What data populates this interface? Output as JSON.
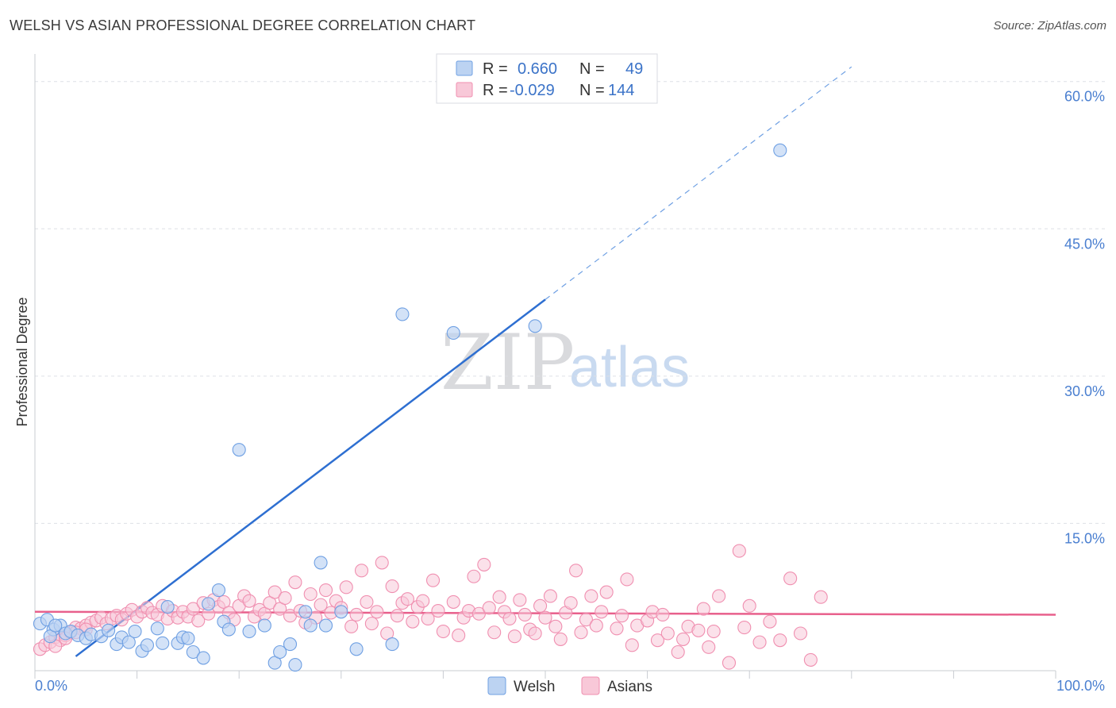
{
  "title": "WELSH VS ASIAN PROFESSIONAL DEGREE CORRELATION CHART",
  "source": "Source: ZipAtlas.com",
  "watermark": {
    "zip": "ZIP",
    "atlas": "atlas"
  },
  "colors": {
    "welsh": "#6fa0e3",
    "welsh_fill": "#bcd3f2",
    "welsh_line": "#2e6fd1",
    "asians": "#f08fb0",
    "asians_fill": "#f8c8d8",
    "asians_line": "#e8608c",
    "grid": "#dde0e6",
    "tick": "#4a7fd0"
  },
  "legend": {
    "r_label": "R =",
    "n_label": "N =",
    "rows": [
      {
        "series": "Welsh",
        "r": "0.660",
        "n": "49"
      },
      {
        "series": "Asians",
        "r": "-0.029",
        "n": "144"
      }
    ]
  },
  "chart_data": {
    "type": "scatter",
    "title": "WELSH VS ASIAN PROFESSIONAL DEGREE CORRELATION CHART",
    "xlabel": "",
    "ylabel": "Professional Degree",
    "xlim": [
      0,
      100
    ],
    "ylim": [
      0,
      62
    ],
    "x_tick_labels": [
      "0.0%",
      "100.0%"
    ],
    "y_ticks": [
      15,
      30,
      45,
      60
    ],
    "y_tick_labels": [
      "15.0%",
      "30.0%",
      "45.0%",
      "60.0%"
    ],
    "series": [
      {
        "name": "Welsh",
        "points": [
          [
            0.5,
            4.8
          ],
          [
            1.2,
            5.2
          ],
          [
            1.8,
            4.2
          ],
          [
            2.5,
            4.6
          ],
          [
            3.0,
            3.8
          ],
          [
            3.5,
            4.0
          ],
          [
            4.2,
            3.6
          ],
          [
            5.0,
            3.3
          ],
          [
            5.5,
            3.7
          ],
          [
            6.5,
            3.5
          ],
          [
            7.2,
            4.1
          ],
          [
            8.0,
            2.7
          ],
          [
            8.5,
            3.4
          ],
          [
            9.2,
            2.9
          ],
          [
            9.8,
            4.0
          ],
          [
            10.5,
            2.0
          ],
          [
            11.0,
            2.6
          ],
          [
            12.0,
            4.3
          ],
          [
            12.5,
            2.8
          ],
          [
            13.0,
            6.5
          ],
          [
            14.0,
            2.8
          ],
          [
            14.5,
            3.4
          ],
          [
            15.0,
            3.3
          ],
          [
            15.5,
            1.9
          ],
          [
            16.5,
            1.3
          ],
          [
            17.0,
            6.8
          ],
          [
            18.0,
            8.2
          ],
          [
            18.5,
            5.0
          ],
          [
            19.0,
            4.2
          ],
          [
            20.0,
            22.5
          ],
          [
            21.0,
            4.0
          ],
          [
            22.5,
            4.6
          ],
          [
            23.5,
            0.8
          ],
          [
            24.0,
            1.9
          ],
          [
            25.0,
            2.7
          ],
          [
            25.5,
            0.6
          ],
          [
            26.5,
            6.0
          ],
          [
            27.0,
            4.6
          ],
          [
            28.0,
            11.0
          ],
          [
            28.5,
            4.6
          ],
          [
            30.0,
            6.0
          ],
          [
            31.5,
            2.2
          ],
          [
            35.0,
            2.7
          ],
          [
            36.0,
            36.3
          ],
          [
            41.0,
            34.4
          ],
          [
            49.0,
            35.1
          ],
          [
            73.0,
            53.0
          ],
          [
            1.5,
            3.5
          ],
          [
            2.0,
            4.6
          ]
        ]
      },
      {
        "name": "Asians",
        "points": [
          [
            0.5,
            2.2
          ],
          [
            1.0,
            2.6
          ],
          [
            1.5,
            2.9
          ],
          [
            2.0,
            3.4
          ],
          [
            2.5,
            3.1
          ],
          [
            3.0,
            3.6
          ],
          [
            3.5,
            3.9
          ],
          [
            4.0,
            4.4
          ],
          [
            4.5,
            4.3
          ],
          [
            5.0,
            4.6
          ],
          [
            5.5,
            4.9
          ],
          [
            6.0,
            5.1
          ],
          [
            6.5,
            5.4
          ],
          [
            7.0,
            4.8
          ],
          [
            7.5,
            5.3
          ],
          [
            8.0,
            5.6
          ],
          [
            8.5,
            5.2
          ],
          [
            9.0,
            5.8
          ],
          [
            9.5,
            6.2
          ],
          [
            10.0,
            5.5
          ],
          [
            10.5,
            6.0
          ],
          [
            11.0,
            6.4
          ],
          [
            11.5,
            5.9
          ],
          [
            12.0,
            5.7
          ],
          [
            12.5,
            6.6
          ],
          [
            13.0,
            5.3
          ],
          [
            13.5,
            6.1
          ],
          [
            14.0,
            5.4
          ],
          [
            14.5,
            6.0
          ],
          [
            15.0,
            5.5
          ],
          [
            15.5,
            6.3
          ],
          [
            16.0,
            5.1
          ],
          [
            16.5,
            6.9
          ],
          [
            17.0,
            5.8
          ],
          [
            17.5,
            7.2
          ],
          [
            18.0,
            6.5
          ],
          [
            18.5,
            7.0
          ],
          [
            19.0,
            5.9
          ],
          [
            19.5,
            5.2
          ],
          [
            20.0,
            6.6
          ],
          [
            20.5,
            7.6
          ],
          [
            21.0,
            7.1
          ],
          [
            21.5,
            5.5
          ],
          [
            22.0,
            6.2
          ],
          [
            22.5,
            5.8
          ],
          [
            23.0,
            6.9
          ],
          [
            23.5,
            8.0
          ],
          [
            24.0,
            6.3
          ],
          [
            24.5,
            7.4
          ],
          [
            25.0,
            5.6
          ],
          [
            25.5,
            9.0
          ],
          [
            26.0,
            6.1
          ],
          [
            26.5,
            4.9
          ],
          [
            27.0,
            7.8
          ],
          [
            27.5,
            5.4
          ],
          [
            28.0,
            6.7
          ],
          [
            28.5,
            8.2
          ],
          [
            29.0,
            5.9
          ],
          [
            29.5,
            7.1
          ],
          [
            30.0,
            6.4
          ],
          [
            30.5,
            8.5
          ],
          [
            31.0,
            4.5
          ],
          [
            31.5,
            5.7
          ],
          [
            32.0,
            10.2
          ],
          [
            32.5,
            7.0
          ],
          [
            33.0,
            4.8
          ],
          [
            33.5,
            6.0
          ],
          [
            34.0,
            11.0
          ],
          [
            34.5,
            3.8
          ],
          [
            35.0,
            8.6
          ],
          [
            35.5,
            5.6
          ],
          [
            36.0,
            6.9
          ],
          [
            36.5,
            7.3
          ],
          [
            37.0,
            5.0
          ],
          [
            37.5,
            6.5
          ],
          [
            38.0,
            7.1
          ],
          [
            38.5,
            5.3
          ],
          [
            39.0,
            9.2
          ],
          [
            39.5,
            6.1
          ],
          [
            40.0,
            4.0
          ],
          [
            41.0,
            7.0
          ],
          [
            41.5,
            3.6
          ],
          [
            42.0,
            5.4
          ],
          [
            42.5,
            6.1
          ],
          [
            43.0,
            9.6
          ],
          [
            43.5,
            5.8
          ],
          [
            44.0,
            10.8
          ],
          [
            44.5,
            6.4
          ],
          [
            45.0,
            3.9
          ],
          [
            45.5,
            7.5
          ],
          [
            46.0,
            6.0
          ],
          [
            46.5,
            5.3
          ],
          [
            47.0,
            3.5
          ],
          [
            47.5,
            7.2
          ],
          [
            48.0,
            5.7
          ],
          [
            48.5,
            4.2
          ],
          [
            49.0,
            3.8
          ],
          [
            49.5,
            6.6
          ],
          [
            50.0,
            5.4
          ],
          [
            50.5,
            7.6
          ],
          [
            51.0,
            4.5
          ],
          [
            51.5,
            3.2
          ],
          [
            52.0,
            5.9
          ],
          [
            52.5,
            6.9
          ],
          [
            53.0,
            10.2
          ],
          [
            53.5,
            3.9
          ],
          [
            54.0,
            5.2
          ],
          [
            54.5,
            7.6
          ],
          [
            55.0,
            4.6
          ],
          [
            55.5,
            6.0
          ],
          [
            56.0,
            8.0
          ],
          [
            57.0,
            4.3
          ],
          [
            57.5,
            5.6
          ],
          [
            58.0,
            9.3
          ],
          [
            58.5,
            2.6
          ],
          [
            59.0,
            4.6
          ],
          [
            60.0,
            5.1
          ],
          [
            60.5,
            6.0
          ],
          [
            61.0,
            3.1
          ],
          [
            61.5,
            5.7
          ],
          [
            62.0,
            3.8
          ],
          [
            63.0,
            1.9
          ],
          [
            63.5,
            3.2
          ],
          [
            64.0,
            4.5
          ],
          [
            65.0,
            4.1
          ],
          [
            65.5,
            6.3
          ],
          [
            66.0,
            2.4
          ],
          [
            66.5,
            4.0
          ],
          [
            67.0,
            7.6
          ],
          [
            68.0,
            0.8
          ],
          [
            69.0,
            12.2
          ],
          [
            69.5,
            4.4
          ],
          [
            70.0,
            6.6
          ],
          [
            71.0,
            2.9
          ],
          [
            72.0,
            5.0
          ],
          [
            73.0,
            3.1
          ],
          [
            74.0,
            9.4
          ],
          [
            75.0,
            3.8
          ],
          [
            76.0,
            1.1
          ],
          [
            77.0,
            7.5
          ],
          [
            2.0,
            2.5
          ],
          [
            3.0,
            3.3
          ],
          [
            4.0,
            3.9
          ],
          [
            5.0,
            4.2
          ]
        ]
      }
    ],
    "trend_lines": [
      {
        "series": "Welsh",
        "x_start": 4,
        "x_end": 50,
        "x_dashed_end": 80,
        "y_at_x0": -1.7,
        "slope": 0.79
      },
      {
        "series": "Asians",
        "x_start": 0,
        "x_end": 100,
        "y_at_x0": 6.0,
        "slope": -0.003
      }
    ]
  }
}
